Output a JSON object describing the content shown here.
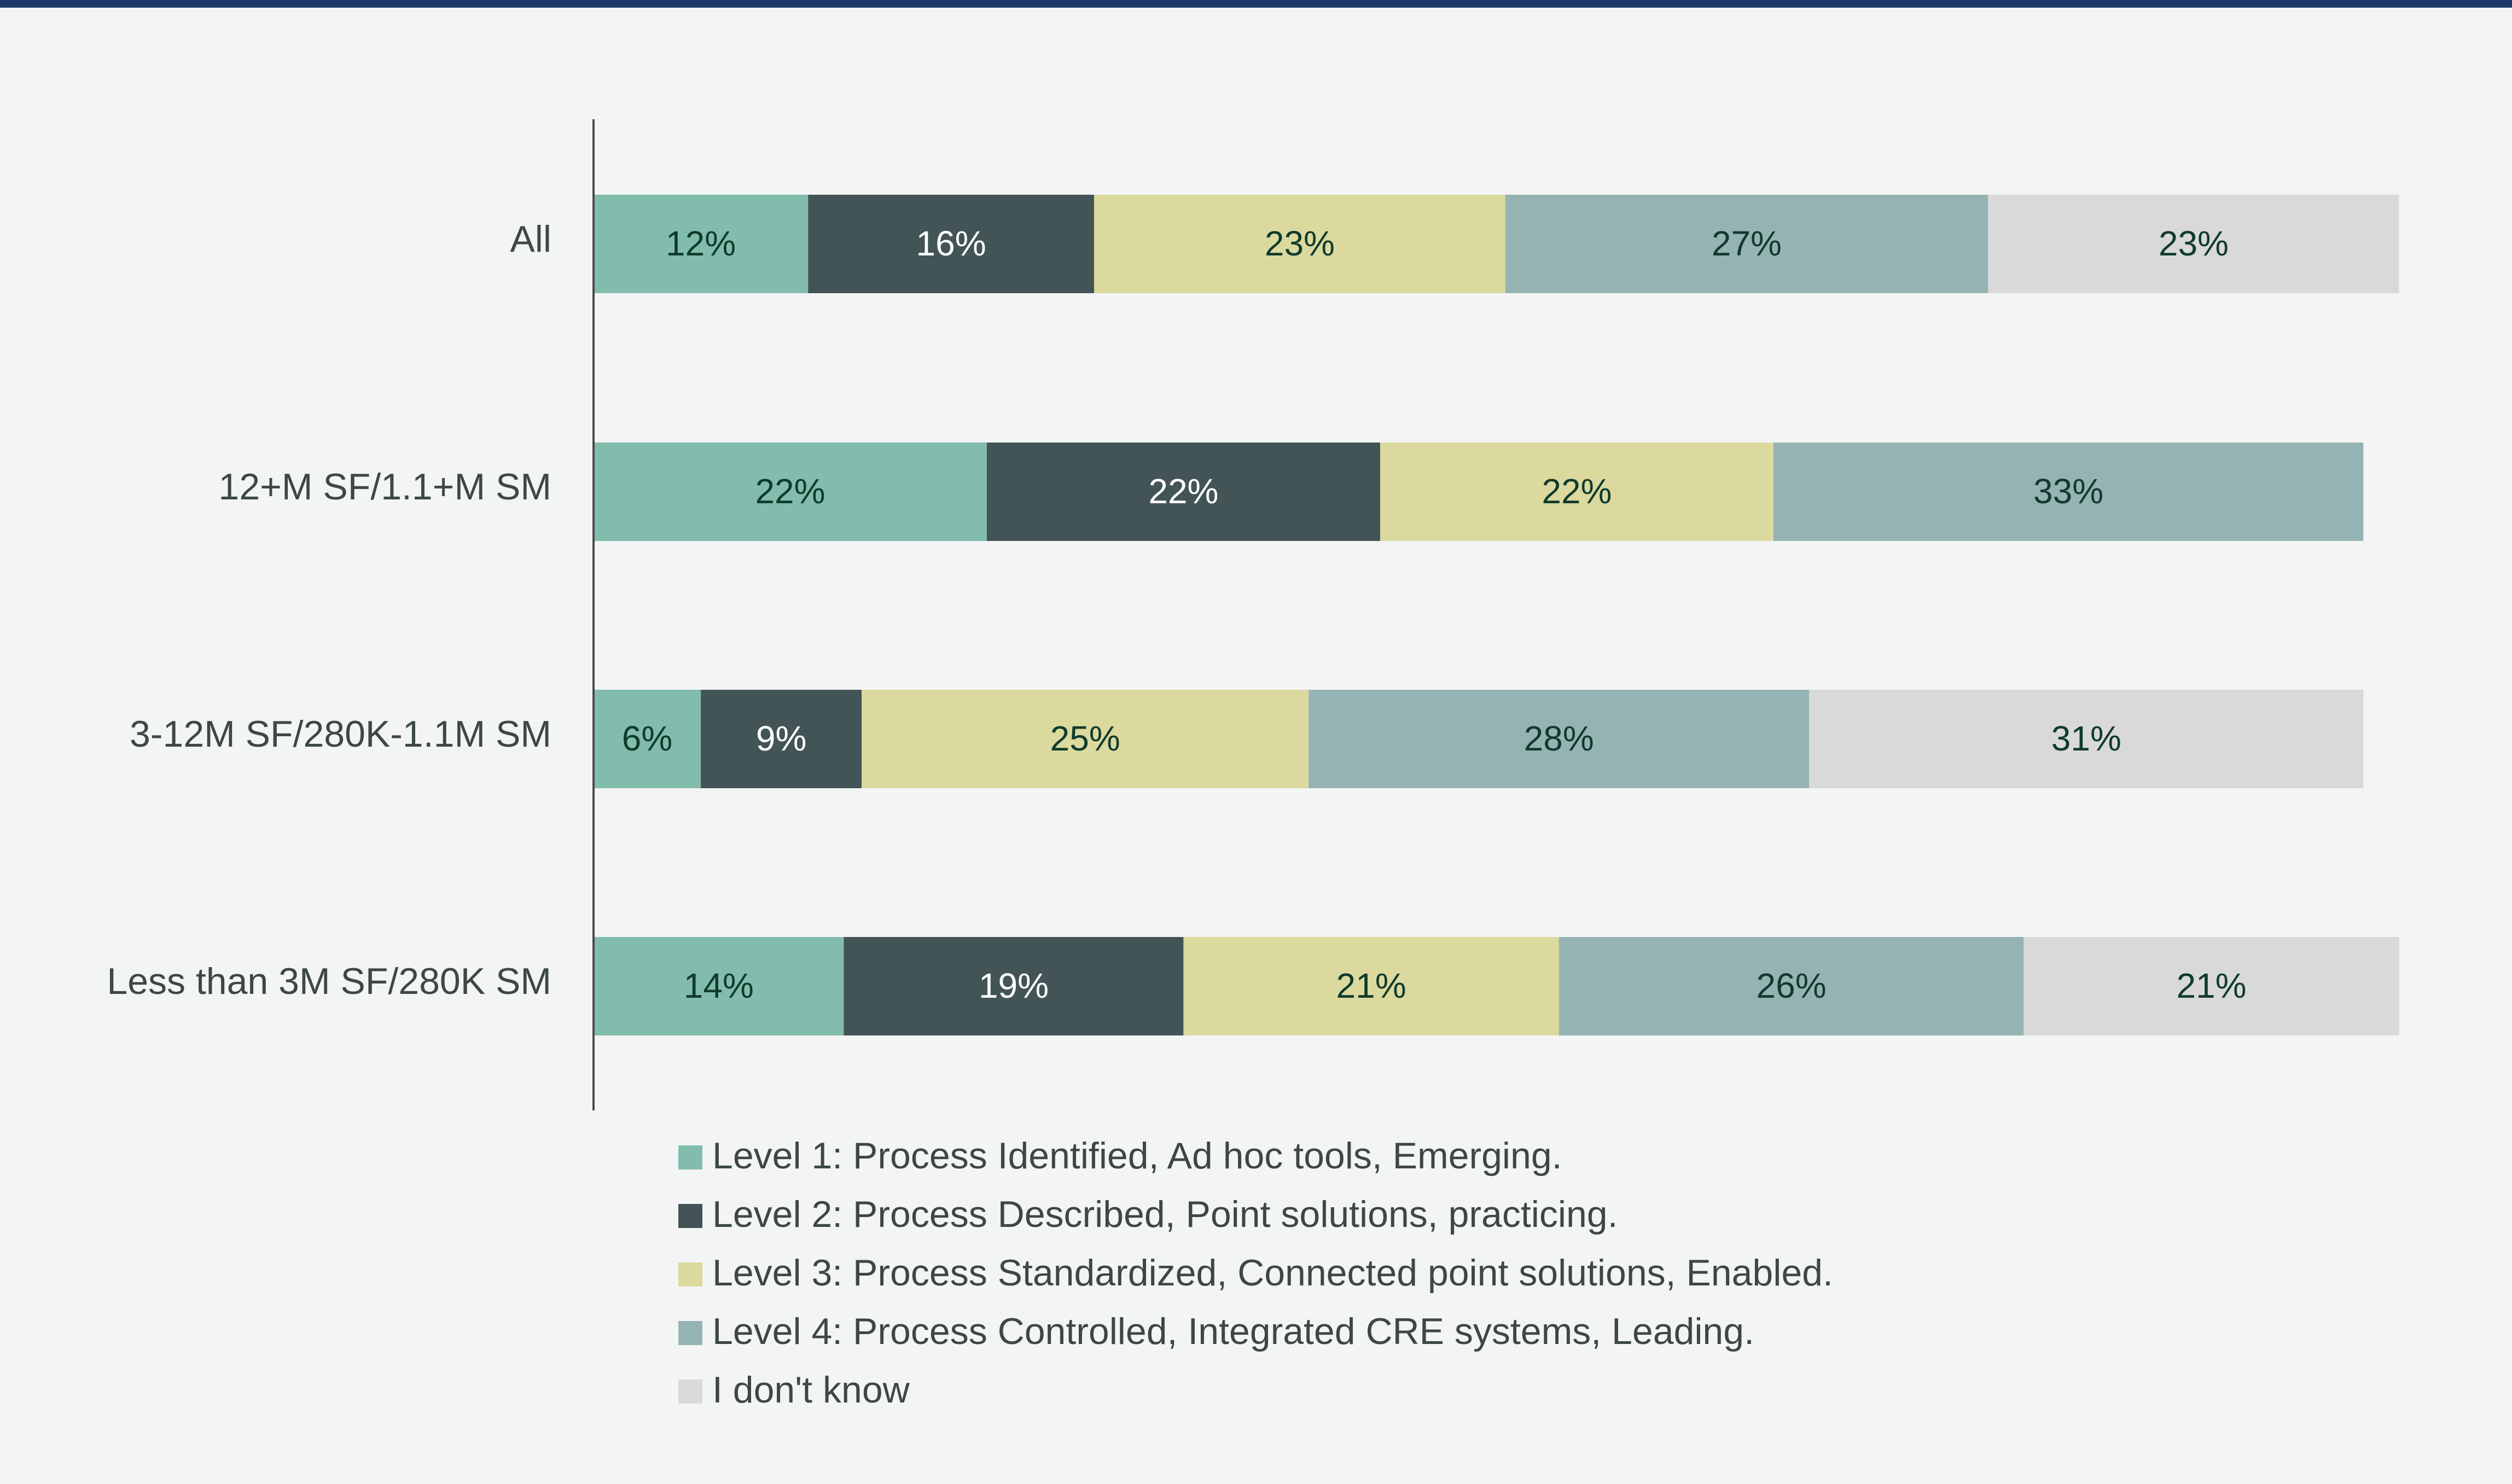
{
  "chart_data": {
    "type": "bar",
    "orientation": "horizontal",
    "stacked": true,
    "title": "",
    "xlabel": "",
    "ylabel": "",
    "xlim": [
      0,
      100
    ],
    "grid": false,
    "legend_position": "bottom",
    "categories": [
      "All",
      "12+M SF/1.1+M SM",
      "3-12M SF/280K-1.1M SM",
      "Less than 3M SF/280K SM"
    ],
    "series": [
      {
        "name": "Level 1: Process Identified, Ad hoc tools, Emerging.",
        "color": "#82bcad",
        "label_color": "#0f3b2c",
        "values": [
          12,
          22,
          6,
          14
        ],
        "labels": [
          "12%",
          "22%",
          "6%",
          "14%"
        ]
      },
      {
        "name": "Level 2: Process Described, Point solutions, practicing.",
        "color": "#435456",
        "label_color": "#ffffff",
        "values": [
          16,
          22,
          9,
          19
        ],
        "labels": [
          "16%",
          "22%",
          "9%",
          "19%"
        ]
      },
      {
        "name": "Level 3: Process Standardized, Connected point solutions, Enabled.",
        "color": "#dcd99f",
        "label_color": "#0f3b2c",
        "values": [
          23,
          22,
          25,
          21
        ],
        "labels": [
          "23%",
          "22%",
          "25%",
          "21%"
        ]
      },
      {
        "name": "Level 4: Process Controlled, Integrated CRE systems, Leading.",
        "color": "#96b3b4",
        "label_color": "#0f3b2c",
        "values": [
          27,
          33,
          28,
          26
        ],
        "labels": [
          "27%",
          "33%",
          "28%",
          "26%"
        ]
      },
      {
        "name": "I don't know",
        "color": "#d9d9d9",
        "label_color": "#0f3b2c",
        "values": [
          23,
          0,
          31,
          21
        ],
        "labels": [
          "23%",
          "",
          "31%",
          "21%"
        ]
      }
    ]
  }
}
